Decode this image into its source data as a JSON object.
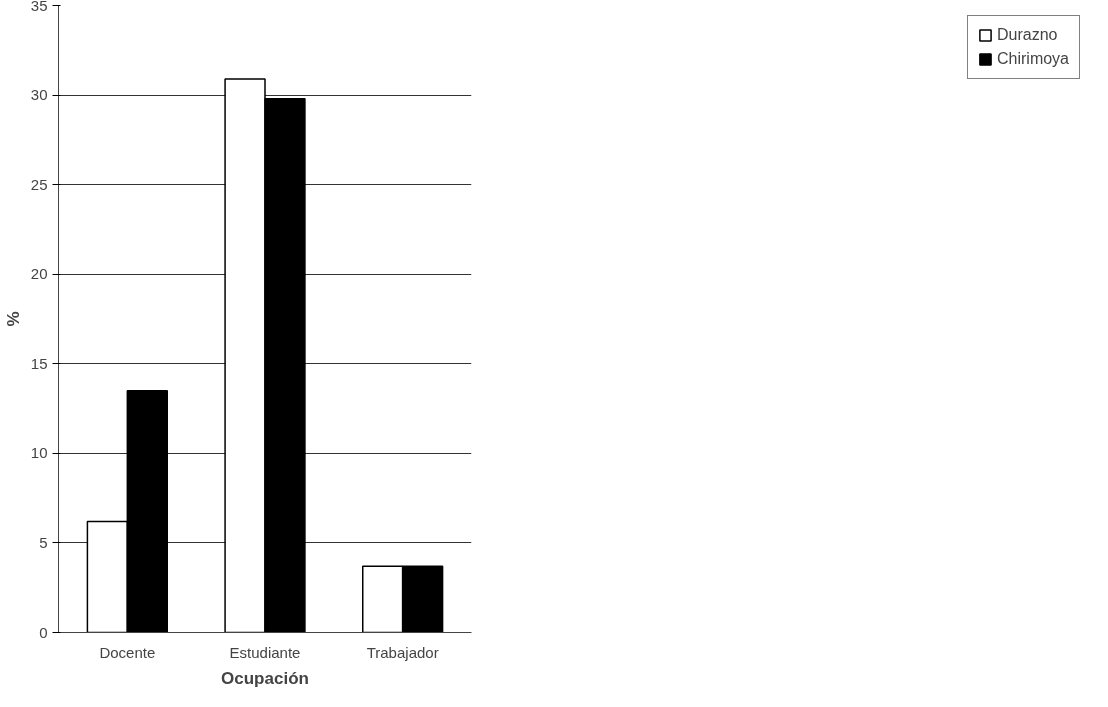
{
  "chart_data": {
    "type": "bar",
    "xlabel": "Ocupación",
    "ylabel": "%",
    "categories": [
      "Docente",
      "Estudiante",
      "Trabajador"
    ],
    "series": [
      {
        "name": "Durazno",
        "color": "#ffffff",
        "values": [
          6.2,
          30.9,
          3.7
        ]
      },
      {
        "name": "Chirimoya",
        "color": "#000000",
        "values": [
          13.5,
          29.8,
          3.7
        ]
      }
    ],
    "ylim": [
      0,
      35
    ],
    "yticks": [
      0,
      5,
      10,
      15,
      20,
      25,
      30,
      35
    ],
    "grid": "y",
    "legend": "right"
  }
}
